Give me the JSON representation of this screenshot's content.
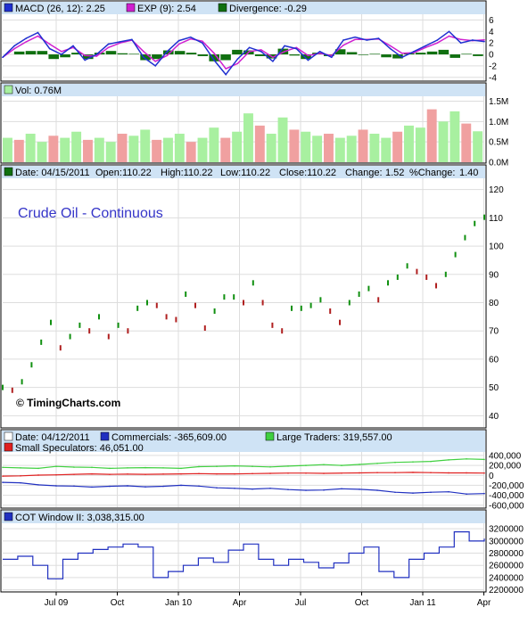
{
  "colors": {
    "panel_bg": "#ffffff",
    "header_bg": "#cfe3f5",
    "grid": "#dddddd",
    "border": "#000000",
    "macd": "#2030d0",
    "exp": "#d020d0",
    "divergence": "#107010",
    "vol_up": "#a8f0a0",
    "vol_down": "#f0a0a0",
    "price_up": "#109010",
    "price_down": "#b02020",
    "commercials": "#2030c0",
    "large_traders": "#40d040",
    "small_spec": "#e02020",
    "cot": "#2030c0",
    "title_text": "#3535c8",
    "change_text": "#008800"
  },
  "panels": {
    "macd": {
      "macd_label": "MACD (26, 12): 2.25",
      "exp_label": "EXP (9): 2.54",
      "div_label": "Divergence: -0.29",
      "ticks": [
        "6",
        "4",
        "2",
        "0",
        "-2",
        "-4"
      ]
    },
    "volume": {
      "vol_label": "Vol: 0.76M",
      "ticks": [
        "1.5M",
        "1.0M",
        "0.5M",
        "0.0M"
      ]
    },
    "price": {
      "date": "Date: 04/15/2011",
      "open": "Open:110.22",
      "high": "High:110.22",
      "low": "Low:110.22",
      "close": "Close:110.22",
      "change_label": "Change:",
      "change_value": "1.52",
      "pct_label": "%Change:",
      "pct_value": "1.40",
      "title": "Crude Oil - Continuous",
      "copyright": "© TimingCharts.com",
      "ticks": [
        "120",
        "110",
        "100",
        "90",
        "80",
        "70",
        "60",
        "50",
        "40"
      ]
    },
    "cot": {
      "date": "Date: 04/12/2011",
      "commercials": "Commercials: -365,609.00",
      "large": "Large Traders: 319,557.00",
      "small": "Small Speculators: 46,051.00",
      "ticks": [
        "400,000",
        "200,000",
        "0",
        "-200,000",
        "-400,000",
        "-600,000"
      ]
    },
    "cot_window": {
      "label": "COT Window II: 3,038,315.00",
      "ticks": [
        "3200000",
        "3000000",
        "2800000",
        "2600000",
        "2400000",
        "2200000"
      ]
    }
  },
  "x_axis": {
    "labels": [
      "Jul 09",
      "Oct",
      "Jan 10",
      "Apr",
      "Jul",
      "Oct",
      "Jan 11",
      "Apr"
    ]
  },
  "chart_data": [
    {
      "type": "line",
      "x_range": [
        "2009-04",
        "2011-04"
      ],
      "ylim": [
        -4,
        6
      ],
      "series": [
        {
          "name": "MACD (26, 12)",
          "values": [
            -0.5,
            1.5,
            2.8,
            3.8,
            1.0,
            0.0,
            1.5,
            -1.0,
            0.0,
            1.8,
            2.2,
            2.6,
            -0.5,
            -2.0,
            0.5,
            2.4,
            3.0,
            2.0,
            -1.0,
            -3.5,
            -0.8,
            1.2,
            0.5,
            -1.2,
            1.5,
            1.0,
            -1.0,
            0.5,
            -0.5,
            2.5,
            3.0,
            2.5,
            2.8,
            1.0,
            -0.5,
            0.5,
            1.5,
            2.5,
            4.0,
            2.0,
            2.5,
            2.25
          ]
        },
        {
          "name": "EXP (9)",
          "values": [
            -0.5,
            1.0,
            2.2,
            3.2,
            1.8,
            0.5,
            1.2,
            -0.2,
            -0.3,
            1.2,
            2.0,
            2.5,
            0.5,
            -1.2,
            -0.2,
            1.8,
            2.7,
            2.3,
            0.2,
            -2.5,
            -1.6,
            0.5,
            0.8,
            -0.5,
            0.5,
            1.2,
            -0.2,
            0.2,
            -0.2,
            1.6,
            2.6,
            2.6,
            2.7,
            1.5,
            0.2,
            0.3,
            1.2,
            2.0,
            3.2,
            2.6,
            2.4,
            2.54
          ]
        },
        {
          "name": "Divergence",
          "values": [
            0.0,
            0.5,
            0.6,
            0.6,
            -0.8,
            -0.5,
            0.3,
            -0.8,
            0.3,
            0.6,
            0.2,
            0.1,
            -1.0,
            -0.8,
            0.7,
            0.6,
            0.3,
            -0.3,
            -1.2,
            -1.0,
            0.8,
            0.7,
            -0.3,
            -0.7,
            1.0,
            -0.2,
            -0.8,
            0.3,
            -0.3,
            0.9,
            0.4,
            -0.1,
            0.1,
            -0.5,
            -0.7,
            0.2,
            0.3,
            0.5,
            0.8,
            -0.6,
            0.1,
            -0.29
          ]
        }
      ]
    },
    {
      "type": "bar",
      "ylim": [
        0,
        1.6
      ],
      "series": [
        {
          "name": "Vol",
          "values": [
            0.6,
            0.55,
            0.7,
            0.5,
            0.65,
            0.6,
            0.75,
            0.55,
            0.6,
            0.5,
            0.7,
            0.65,
            0.8,
            0.55,
            0.6,
            0.7,
            0.5,
            0.6,
            0.85,
            0.6,
            0.75,
            1.2,
            0.9,
            0.7,
            1.1,
            0.8,
            0.75,
            0.65,
            0.7,
            0.6,
            0.65,
            0.8,
            0.7,
            0.6,
            0.75,
            0.9,
            0.85,
            1.3,
            1.0,
            1.25,
            0.95,
            0.76
          ]
        }
      ]
    },
    {
      "type": "line",
      "title": "Crude Oil - Continuous",
      "ylim": [
        40,
        123
      ],
      "series": [
        {
          "name": "Close",
          "values": [
            50,
            49,
            52,
            58,
            66,
            73,
            64,
            68,
            72,
            70,
            75,
            68,
            72,
            70,
            78,
            80,
            79,
            75,
            74,
            83,
            79,
            71,
            77,
            82,
            82,
            80,
            87,
            80,
            72,
            70,
            78,
            78,
            79,
            81,
            77,
            73,
            80,
            83,
            85,
            81,
            87,
            89,
            93,
            91,
            89,
            86,
            90,
            97,
            103,
            108,
            110.22
          ]
        }
      ]
    },
    {
      "type": "line",
      "ylim": [
        -600000,
        450000
      ],
      "series": [
        {
          "name": "Commercials",
          "values": [
            -140000,
            -150000,
            -190000,
            -210000,
            -215000,
            -235000,
            -220000,
            -210000,
            -230000,
            -220000,
            -200000,
            -215000,
            -250000,
            -260000,
            -275000,
            -260000,
            -285000,
            -300000,
            -295000,
            -270000,
            -280000,
            -300000,
            -340000,
            -355000,
            -340000,
            -330000,
            -375000,
            -365609
          ]
        },
        {
          "name": "Large Traders",
          "values": [
            160000,
            150000,
            140000,
            180000,
            165000,
            160000,
            140000,
            150000,
            155000,
            150000,
            140000,
            175000,
            180000,
            190000,
            180000,
            170000,
            185000,
            200000,
            215000,
            200000,
            220000,
            240000,
            260000,
            270000,
            280000,
            310000,
            330000,
            319557
          ]
        },
        {
          "name": "Small Speculators",
          "values": [
            -15000,
            -10000,
            5000,
            10000,
            20000,
            30000,
            20000,
            25000,
            20000,
            25000,
            30000,
            35000,
            30000,
            30000,
            35000,
            40000,
            45000,
            45000,
            40000,
            45000,
            50000,
            55000,
            55000,
            60000,
            55000,
            50000,
            50000,
            46051
          ]
        }
      ]
    },
    {
      "type": "line",
      "ylim": [
        2200000,
        3250000
      ],
      "series": [
        {
          "name": "COT Window II",
          "values": [
            2700000,
            2750000,
            2600000,
            2380000,
            2700000,
            2800000,
            2860000,
            2900000,
            2950000,
            2900000,
            2400000,
            2500000,
            2600000,
            2720000,
            2650000,
            2850000,
            2950000,
            2700000,
            2600000,
            2700000,
            2650000,
            2560000,
            2640000,
            2800000,
            2900000,
            2500000,
            2400000,
            2700000,
            2800000,
            2900000,
            3150000,
            3000000,
            3038315
          ]
        }
      ]
    }
  ]
}
